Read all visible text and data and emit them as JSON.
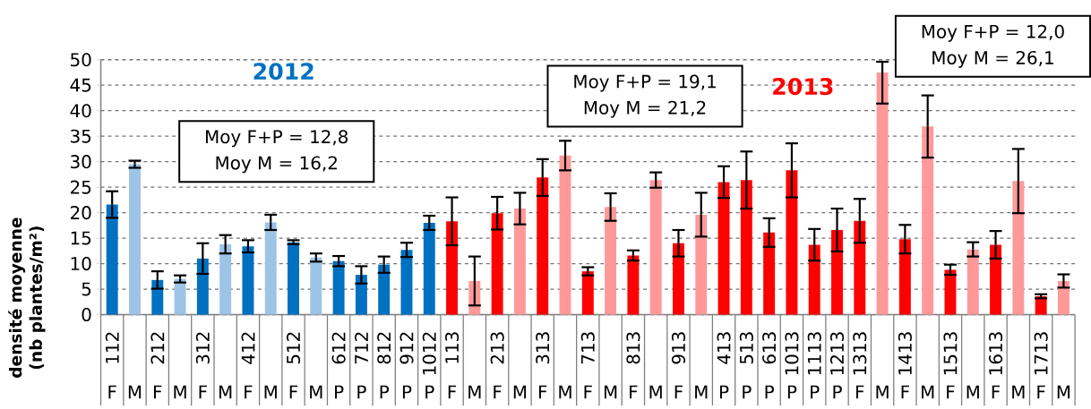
{
  "chart_data": {
    "type": "bar",
    "ylabel": "densité moyenne (nb plantes/m²)",
    "categories": [
      "112",
      null,
      "212",
      null,
      "312",
      null,
      "412",
      null,
      "512",
      null,
      "612",
      "712",
      "812",
      "912",
      "1012",
      "113",
      null,
      "213",
      null,
      "313",
      null,
      "713",
      null,
      "813",
      null,
      "913",
      null,
      "413",
      "513",
      "613",
      "1013",
      "1113",
      "1213",
      "1313",
      null,
      "1413",
      null,
      "1513",
      null,
      "1613",
      null,
      "1713",
      null
    ],
    "values": [
      21.6,
      29.5,
      6.8,
      7.0,
      11.0,
      13.8,
      13.4,
      18.1,
      14.2,
      11.2,
      10.5,
      7.8,
      9.8,
      12.7,
      18.0,
      18.3,
      6.6,
      19.9,
      20.8,
      26.9,
      31.2,
      8.5,
      21.1,
      11.6,
      26.4,
      14.0,
      19.6,
      26.0,
      26.4,
      16.1,
      28.3,
      13.7,
      16.6,
      18.4,
      47.5,
      14.8,
      36.9,
      8.8,
      12.8,
      13.7,
      26.2,
      3.6,
      6.6
    ],
    "errors": [
      2.6,
      0.7,
      1.7,
      0.7,
      3.0,
      1.8,
      1.2,
      1.5,
      0.4,
      0.8,
      1.0,
      1.7,
      1.6,
      1.4,
      1.4,
      4.7,
      4.8,
      3.2,
      3.1,
      3.6,
      2.9,
      0.8,
      2.7,
      1.0,
      1.5,
      2.6,
      4.3,
      3.1,
      5.6,
      2.8,
      5.3,
      3.1,
      4.2,
      4.3,
      [
        41.4,
        49.6
      ],
      2.8,
      6.1,
      1.0,
      1.4,
      2.7,
      6.3,
      0.4,
      1.3
    ],
    "colors": [
      "#0070c0",
      "#9dc3e6",
      "#0070c0",
      "#9dc3e6",
      "#0070c0",
      "#9dc3e6",
      "#0070c0",
      "#9dc3e6",
      "#0070c0",
      "#9dc3e6",
      "#0070c0",
      "#0070c0",
      "#0070c0",
      "#0070c0",
      "#0070c0",
      "#ff0000",
      "#ff9999",
      "#ff0000",
      "#ff9999",
      "#ff0000",
      "#ff9999",
      "#ff0000",
      "#ff9999",
      "#ff0000",
      "#ff9999",
      "#ff0000",
      "#ff9999",
      "#ff0000",
      "#ff0000",
      "#ff0000",
      "#ff0000",
      "#ff0000",
      "#ff0000",
      "#ff0000",
      "#ff9999",
      "#ff0000",
      "#ff9999",
      "#ff0000",
      "#ff9999",
      "#ff0000",
      "#ff9999",
      "#ff0000",
      "#ff9999"
    ],
    "ylim": [
      0,
      50
    ],
    "yticks": [
      0,
      5,
      10,
      15,
      20,
      25,
      30,
      35,
      40,
      45,
      50
    ],
    "grid": "y",
    "annotations": [
      "2012",
      "2013",
      "Moy F+P = 12,8",
      "Moy M = 16,2",
      "Moy F+P = 19,1",
      "Moy M = 21,2",
      "Moy F+P = 12,0",
      "Moy M = 26,1",
      "F",
      "M",
      "F",
      "M",
      "F",
      "M",
      "F",
      "M",
      "F",
      "M",
      "P",
      "P",
      "P",
      "P",
      "P",
      "F",
      "M",
      "F",
      "M",
      "F",
      "M",
      "F",
      "M",
      "F",
      "M",
      "F",
      "M",
      "P",
      "P",
      "P",
      "P",
      "P",
      "P",
      "F",
      "M",
      "F",
      "M",
      "F",
      "M",
      "F",
      "M",
      "F",
      "M"
    ]
  }
}
